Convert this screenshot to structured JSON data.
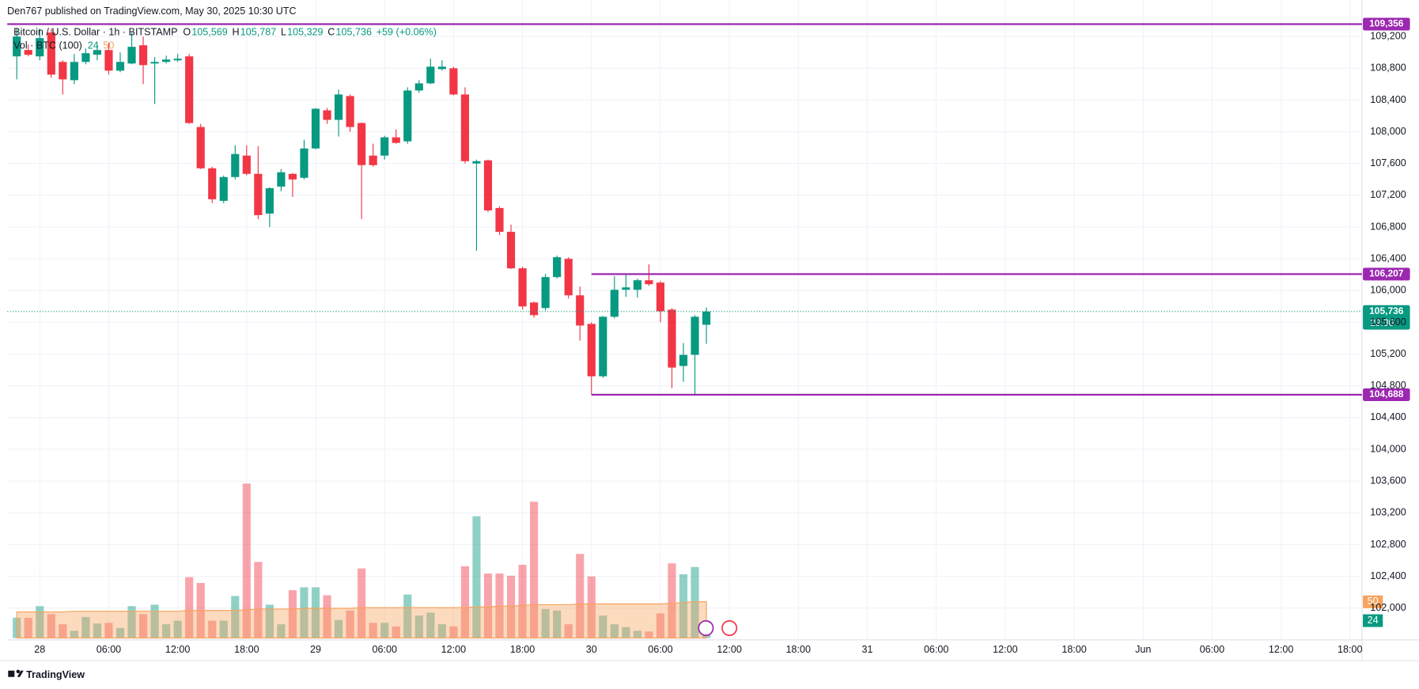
{
  "header": {
    "publisher": "Den767 published on TradingView.com, May 30, 2025 10:30 UTC",
    "footer": "TradingView"
  },
  "chart_data": {
    "type": "candlestick",
    "title": "Bitcoin / U.S. Dollar · 1h · BITSTAMP",
    "legend_keys": [
      "O",
      "H",
      "L",
      "C"
    ],
    "ohlc_labels": [
      "105,569",
      "105,787",
      "105,329",
      "105,736"
    ],
    "change": "+59 (+0.06%)",
    "volume_title": "Vol · BTC (100)",
    "up_color": "#089981",
    "down_color": "#f23645",
    "x": [
      -2,
      -1,
      0,
      1,
      2,
      3,
      4,
      5,
      6,
      7,
      8,
      9,
      10,
      11,
      12,
      13,
      14,
      15,
      16,
      17,
      18,
      19,
      20,
      21,
      22,
      23,
      24,
      25,
      26,
      27,
      28,
      29,
      30,
      31,
      32,
      33,
      34,
      35,
      36,
      37,
      38,
      39,
      40,
      41,
      42,
      43,
      44,
      45,
      46,
      47,
      48,
      49,
      50,
      51,
      52,
      53,
      54,
      55,
      56,
      57,
      58
    ],
    "open": [
      108950,
      109030,
      108950,
      109250,
      108880,
      108650,
      108880,
      108970,
      109030,
      108770,
      108860,
      109090,
      108860,
      108880,
      108900,
      108950,
      108060,
      107540,
      107130,
      107430,
      107700,
      107470,
      106970,
      107310,
      107470,
      107420,
      107790,
      108270,
      108150,
      108450,
      108110,
      107700,
      107700,
      107930,
      107880,
      108520,
      108610,
      108790,
      108800,
      108470,
      107600,
      107640,
      107040,
      106740,
      106280,
      105850,
      105780,
      106170,
      106400,
      105940,
      105580,
      104920,
      105670,
      106010,
      106010,
      106130,
      106100,
      105760,
      105050,
      105190,
      105569
    ],
    "high": [
      109300,
      109100,
      109300,
      109300,
      108900,
      108980,
      109050,
      109100,
      109120,
      109000,
      109250,
      109200,
      108940,
      108960,
      108980,
      108980,
      108100,
      107560,
      107450,
      107830,
      107830,
      107820,
      107300,
      107530,
      107480,
      107900,
      108300,
      108300,
      108530,
      108470,
      108120,
      107850,
      107950,
      108030,
      108560,
      108650,
      108920,
      108900,
      108820,
      108560,
      107650,
      107650,
      107060,
      106830,
      106300,
      105860,
      106210,
      106440,
      106420,
      106050,
      105600,
      105680,
      106180,
      106210,
      106150,
      106330,
      106120,
      105780,
      105340,
      105690,
      105787
    ],
    "low": [
      108660,
      108950,
      108900,
      108680,
      108470,
      108600,
      108850,
      108900,
      108720,
      108750,
      108850,
      108600,
      108350,
      108860,
      108880,
      108100,
      107530,
      107100,
      107100,
      107400,
      107450,
      106900,
      106800,
      107250,
      107180,
      107400,
      107780,
      108100,
      107940,
      108000,
      106900,
      107560,
      107650,
      107850,
      107850,
      108490,
      108600,
      108770,
      108460,
      107600,
      106500,
      106990,
      106700,
      106270,
      105760,
      105660,
      105750,
      106150,
      105900,
      105370,
      104690,
      104900,
      105650,
      105920,
      105910,
      106060,
      105600,
      104770,
      104850,
      104690,
      105329
    ],
    "close": [
      109200,
      108970,
      109180,
      108720,
      108660,
      108880,
      108990,
      109030,
      108770,
      108880,
      109070,
      108840,
      108880,
      108910,
      108920,
      108110,
      107540,
      107150,
      107430,
      107720,
      107470,
      106950,
      107290,
      107490,
      107400,
      107790,
      108290,
      108150,
      108470,
      108060,
      107580,
      107580,
      107930,
      107860,
      108520,
      108610,
      108820,
      108820,
      108470,
      107630,
      107630,
      107010,
      106740,
      106280,
      105800,
      105690,
      106170,
      106420,
      105940,
      105560,
      104920,
      105670,
      106010,
      106040,
      106130,
      106080,
      105740,
      105030,
      105190,
      105670,
      105736
    ],
    "volume": [
      28,
      28,
      44,
      33,
      19,
      10,
      29,
      20,
      21,
      14,
      44,
      33,
      46,
      19,
      24,
      84,
      76,
      24,
      24,
      58,
      213,
      105,
      46,
      19,
      66,
      70,
      70,
      59,
      25,
      38,
      96,
      21,
      21,
      16,
      60,
      31,
      35,
      19,
      16,
      99,
      168,
      89,
      89,
      86,
      101,
      188,
      40,
      38,
      19,
      116,
      85,
      31,
      19,
      15,
      10,
      9,
      34,
      103,
      88,
      98,
      24
    ],
    "volume_ma": [
      36,
      36,
      36,
      36,
      36,
      37,
      37,
      37,
      37,
      37,
      37,
      37,
      37,
      37,
      37,
      38,
      38,
      38,
      38,
      38,
      39,
      40,
      40,
      40,
      40,
      41,
      41,
      41,
      41,
      41,
      42,
      42,
      42,
      42,
      42,
      42,
      42,
      42,
      42,
      42,
      43,
      43,
      44,
      44,
      45,
      46,
      46,
      46,
      46,
      47,
      47,
      47,
      47,
      47,
      47,
      47,
      47,
      48,
      49,
      50,
      50
    ],
    "volume_lim": [
      0,
      880
    ],
    "xlim": [
      -2.83,
      115.04
    ],
    "ylim": [
      101600,
      109660
    ],
    "xticks": [
      {
        "value": 0,
        "label": "28"
      },
      {
        "value": 6,
        "label": "06:00"
      },
      {
        "value": 12,
        "label": "12:00"
      },
      {
        "value": 18,
        "label": "18:00"
      },
      {
        "value": 24,
        "label": "29"
      },
      {
        "value": 30,
        "label": "06:00"
      },
      {
        "value": 36,
        "label": "12:00"
      },
      {
        "value": 42,
        "label": "18:00"
      },
      {
        "value": 48,
        "label": "30"
      },
      {
        "value": 54,
        "label": "06:00"
      },
      {
        "value": 60,
        "label": "12:00"
      },
      {
        "value": 66,
        "label": "18:00"
      },
      {
        "value": 72,
        "label": "31"
      },
      {
        "value": 78,
        "label": "06:00"
      },
      {
        "value": 84,
        "label": "12:00"
      },
      {
        "value": 90,
        "label": "18:00"
      },
      {
        "value": 96,
        "label": "Jun"
      },
      {
        "value": 102,
        "label": "06:00"
      },
      {
        "value": 108,
        "label": "12:00"
      },
      {
        "value": 114,
        "label": "18:00"
      }
    ],
    "yticks": [
      {
        "value": 102000,
        "label": "102,000"
      },
      {
        "value": 102400,
        "label": "102,400"
      },
      {
        "value": 102800,
        "label": "102,800"
      },
      {
        "value": 103200,
        "label": "103,200"
      },
      {
        "value": 103600,
        "label": "103,600"
      },
      {
        "value": 104000,
        "label": "104,000"
      },
      {
        "value": 104400,
        "label": "104,400"
      },
      {
        "value": 104800,
        "label": "104,800"
      },
      {
        "value": 105200,
        "label": "105,200"
      },
      {
        "value": 105600,
        "label": "105,600"
      },
      {
        "value": 106000,
        "label": "106,000"
      },
      {
        "value": 106400,
        "label": "106,400"
      },
      {
        "value": 106800,
        "label": "106,800"
      },
      {
        "value": 107200,
        "label": "107,200"
      },
      {
        "value": 107600,
        "label": "107,600"
      },
      {
        "value": 108000,
        "label": "108,000"
      },
      {
        "value": 108400,
        "label": "108,400"
      },
      {
        "value": 108800,
        "label": "108,800"
      },
      {
        "value": 109200,
        "label": "109,200"
      }
    ],
    "grid": true,
    "hlines": [
      {
        "value": 109356,
        "label": "109,356",
        "color": "#9c27b0"
      },
      {
        "value": 106207,
        "label": "106,207",
        "color": "#9c27b0",
        "x_start": 48
      },
      {
        "value": 104688,
        "label": "104,688",
        "color": "#9c27b0",
        "x_start": 48
      }
    ],
    "last_price": {
      "value": 105736,
      "label": "105,736",
      "countdown": "29:30",
      "color": "#089981"
    },
    "volume_ma_color": "#f7a35c"
  }
}
